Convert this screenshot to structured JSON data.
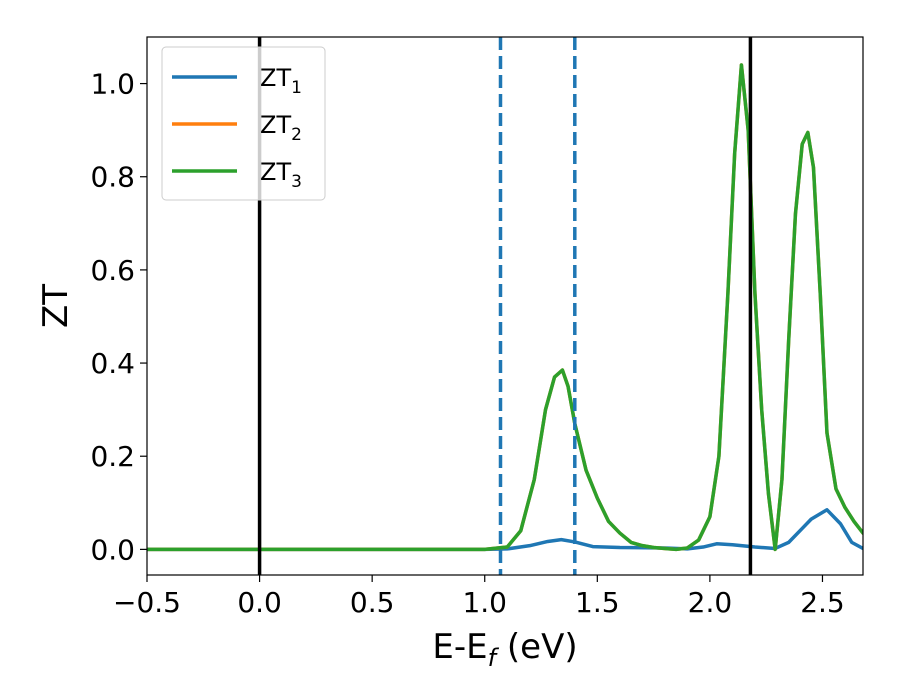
{
  "chart_data": {
    "type": "line",
    "xlabel": "E-E",
    "xlabel_sub": "f",
    "xlabel_unit": " (eV)",
    "ylabel": "ZT",
    "xlim": [
      -0.5,
      2.68
    ],
    "ylim": [
      -0.055,
      1.1
    ],
    "xticks": [
      -0.5,
      0.0,
      0.5,
      1.0,
      1.5,
      2.0,
      2.5
    ],
    "xtick_labels": [
      "−0.5",
      "0.0",
      "0.5",
      "1.0",
      "1.5",
      "2.0",
      "2.5"
    ],
    "yticks": [
      0.0,
      0.2,
      0.4,
      0.6,
      0.8,
      1.0
    ],
    "ytick_labels": [
      "0.0",
      "0.2",
      "0.4",
      "0.6",
      "0.8",
      "1.0"
    ],
    "grid": false,
    "legend_position": "top-left",
    "legend": [
      {
        "label": "ZT",
        "sub": "1",
        "color": "#1f77b4"
      },
      {
        "label": "ZT",
        "sub": "2",
        "color": "#ff7f0e"
      },
      {
        "label": "ZT",
        "sub": "3",
        "color": "#2ca02c"
      }
    ],
    "vlines": [
      {
        "x": 0.0,
        "style": "solid",
        "color": "#000000"
      },
      {
        "x": 1.07,
        "style": "dashed",
        "color": "#1f77b4"
      },
      {
        "x": 1.4,
        "style": "dashed",
        "color": "#1f77b4"
      },
      {
        "x": 2.18,
        "style": "solid",
        "color": "#000000"
      }
    ],
    "series": [
      {
        "name": "ZT1",
        "color": "#1f77b4",
        "x": [
          -0.5,
          1.0,
          1.1,
          1.2,
          1.28,
          1.34,
          1.4,
          1.48,
          1.6,
          1.8,
          1.9,
          1.97,
          2.03,
          2.1,
          2.2,
          2.29,
          2.35,
          2.41,
          2.45,
          2.52,
          2.58,
          2.63,
          2.68
        ],
        "y": [
          0.0,
          0.0,
          0.001,
          0.008,
          0.017,
          0.021,
          0.016,
          0.006,
          0.004,
          0.003,
          0.001,
          0.005,
          0.012,
          0.01,
          0.005,
          0.002,
          0.015,
          0.045,
          0.065,
          0.085,
          0.055,
          0.015,
          0.002
        ]
      },
      {
        "name": "ZT2",
        "color": "#ff7f0e",
        "x": [
          -0.5,
          1.0,
          1.1,
          1.16,
          1.22,
          1.27,
          1.31,
          1.345,
          1.37,
          1.4,
          1.45,
          1.5,
          1.55,
          1.6,
          1.65,
          1.7,
          1.75,
          1.8,
          1.85,
          1.9,
          1.95,
          2.0,
          2.04,
          2.08,
          2.11,
          2.14,
          2.17,
          2.2,
          2.23,
          2.26,
          2.29,
          2.32,
          2.35,
          2.38,
          2.41,
          2.435,
          2.46,
          2.49,
          2.52,
          2.56,
          2.6,
          2.64,
          2.68
        ],
        "y": [
          0.0,
          0.0,
          0.005,
          0.04,
          0.15,
          0.3,
          0.37,
          0.385,
          0.35,
          0.27,
          0.17,
          0.11,
          0.06,
          0.035,
          0.015,
          0.008,
          0.004,
          0.002,
          0.0,
          0.003,
          0.02,
          0.07,
          0.2,
          0.55,
          0.85,
          1.04,
          0.9,
          0.55,
          0.3,
          0.12,
          0.0,
          0.15,
          0.45,
          0.72,
          0.87,
          0.895,
          0.82,
          0.55,
          0.25,
          0.13,
          0.09,
          0.06,
          0.035
        ]
      },
      {
        "name": "ZT3",
        "color": "#2ca02c",
        "x": [
          -0.5,
          1.0,
          1.1,
          1.16,
          1.22,
          1.27,
          1.31,
          1.345,
          1.37,
          1.4,
          1.45,
          1.5,
          1.55,
          1.6,
          1.65,
          1.7,
          1.75,
          1.8,
          1.85,
          1.9,
          1.95,
          2.0,
          2.04,
          2.08,
          2.11,
          2.14,
          2.17,
          2.2,
          2.23,
          2.26,
          2.29,
          2.32,
          2.35,
          2.38,
          2.41,
          2.435,
          2.46,
          2.49,
          2.52,
          2.56,
          2.6,
          2.64,
          2.68
        ],
        "y": [
          0.0,
          0.0,
          0.005,
          0.04,
          0.15,
          0.3,
          0.37,
          0.385,
          0.35,
          0.27,
          0.17,
          0.11,
          0.06,
          0.035,
          0.015,
          0.008,
          0.004,
          0.002,
          0.0,
          0.003,
          0.02,
          0.07,
          0.2,
          0.55,
          0.85,
          1.04,
          0.9,
          0.55,
          0.3,
          0.12,
          0.0,
          0.15,
          0.45,
          0.72,
          0.87,
          0.895,
          0.82,
          0.55,
          0.25,
          0.13,
          0.09,
          0.06,
          0.035
        ]
      }
    ]
  }
}
